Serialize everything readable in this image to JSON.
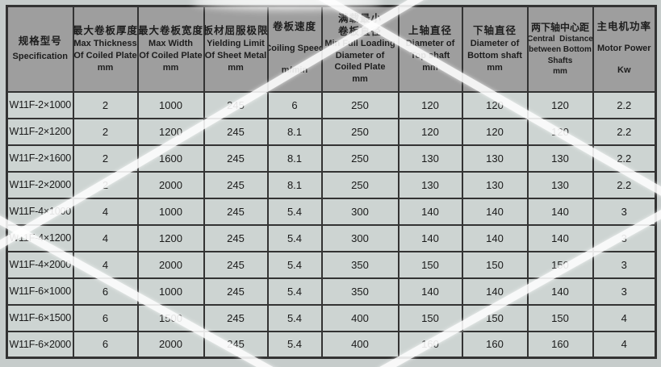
{
  "theme": {
    "page_bg": "#c6cccb",
    "header_bg": "#9e9e9e",
    "cell_bg": "#cdd4d2",
    "border_color": "#333333",
    "text_color": "#1a1a1a",
    "stripe_color": "#ffffff"
  },
  "table": {
    "columns": [
      {
        "id": "specification",
        "lines": [
          "规格型号",
          "Specification"
        ]
      },
      {
        "id": "max-thickness",
        "lines": [
          "最大卷板厚度",
          "Max Thickness",
          "Of Coiled Plate",
          "mm"
        ]
      },
      {
        "id": "max-width",
        "lines": [
          "最大卷板宽度",
          "Max Width",
          "Of Coiled Plate",
          "mm"
        ]
      },
      {
        "id": "yielding-limit",
        "lines": [
          "板材屈服极限",
          "Yielding Limit",
          "Of Sheet Metal",
          "mm"
        ]
      },
      {
        "id": "coiling-speed",
        "lines": [
          "卷板速度",
          "Coiling Speed",
          "m/min"
        ]
      },
      {
        "id": "min-diameter",
        "lines": [
          "满载最小",
          "卷板直径",
          "Min Full Loading",
          "Diameter of",
          "Coiled Plate",
          "mm"
        ]
      },
      {
        "id": "top-shaft-diameter",
        "lines": [
          "上轴直径",
          "Diameter of",
          "Top shaft",
          "mm"
        ]
      },
      {
        "id": "bottom-shaft-diameter",
        "lines": [
          "下轴直径",
          "Diameter of",
          "Bottom shaft",
          "mm"
        ]
      },
      {
        "id": "bottom-shafts-distance",
        "lines": [
          "两下轴中心距",
          "Central  Distance",
          "between Bottom",
          "Shafts",
          "mm"
        ]
      },
      {
        "id": "motor-power",
        "lines": [
          "主电机功率",
          "Motor Power",
          "Kw"
        ]
      }
    ],
    "rows": [
      [
        "W11F-2×1000",
        "2",
        "1000",
        "245",
        "6",
        "250",
        "120",
        "120",
        "120",
        "2.2"
      ],
      [
        "W11F-2×1200",
        "2",
        "1200",
        "245",
        "8.1",
        "250",
        "120",
        "120",
        "120",
        "2.2"
      ],
      [
        "W11F-2×1600",
        "2",
        "1600",
        "245",
        "8.1",
        "250",
        "130",
        "130",
        "130",
        "2.2"
      ],
      [
        "W11F-2×2000",
        "2",
        "2000",
        "245",
        "8.1",
        "250",
        "130",
        "130",
        "130",
        "2.2"
      ],
      [
        "W11F-4×1000",
        "4",
        "1000",
        "245",
        "5.4",
        "300",
        "140",
        "140",
        "140",
        "3"
      ],
      [
        "W11F-4×1200",
        "4",
        "1200",
        "245",
        "5.4",
        "300",
        "140",
        "140",
        "140",
        "3"
      ],
      [
        "W11F-4×2000",
        "4",
        "2000",
        "245",
        "5.4",
        "350",
        "150",
        "150",
        "150",
        "3"
      ],
      [
        "W11F-6×1000",
        "6",
        "1000",
        "245",
        "5.4",
        "350",
        "140",
        "140",
        "140",
        "3"
      ],
      [
        "W11F-6×1500",
        "6",
        "1500",
        "245",
        "5.4",
        "400",
        "150",
        "150",
        "150",
        "4"
      ],
      [
        "W11F-6×2000",
        "6",
        "2000",
        "245",
        "5.4",
        "400",
        "160",
        "160",
        "160",
        "4"
      ]
    ]
  }
}
